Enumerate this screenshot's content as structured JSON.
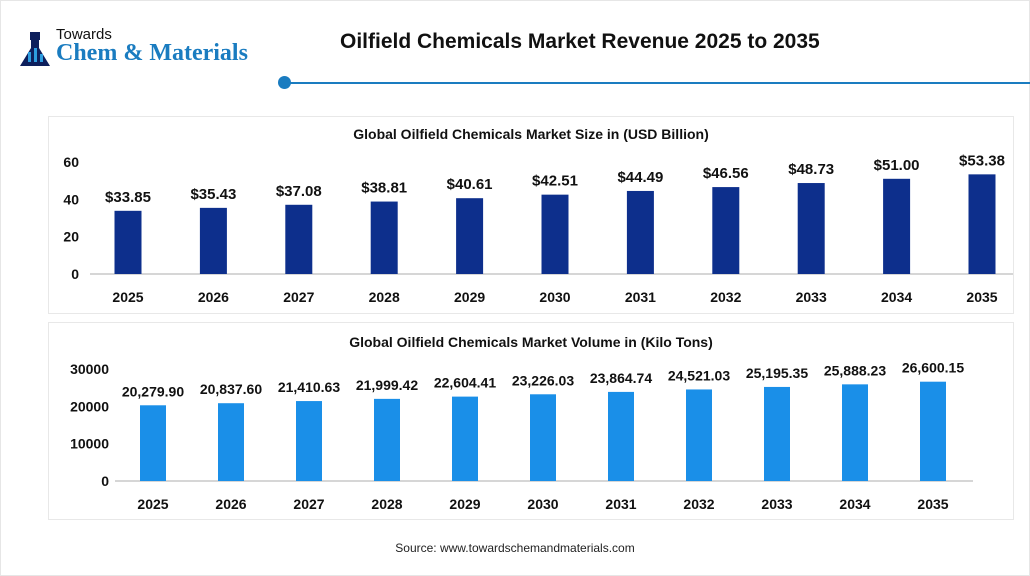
{
  "header": {
    "logo_line1": "Towards",
    "logo_line2": "Chem & Materials",
    "title": "Oilfield Chemicals Market Revenue 2025 to 2035"
  },
  "source": "Source: www.towardschemandmaterials.com",
  "chart_data": [
    {
      "type": "bar",
      "title": "Global Oilfield Chemicals Market Size in (USD Billion)",
      "categories": [
        "2025",
        "2026",
        "2027",
        "2028",
        "2029",
        "2030",
        "2031",
        "2032",
        "2033",
        "2034",
        "2035"
      ],
      "values": [
        33.85,
        35.43,
        37.08,
        38.81,
        40.61,
        42.51,
        44.49,
        46.56,
        48.73,
        51.0,
        53.38
      ],
      "data_labels": [
        "$33.85",
        "$35.43",
        "$37.08",
        "$38.81",
        "$40.61",
        "$42.51",
        "$44.49",
        "$46.56",
        "$48.73",
        "$51.00",
        "$53.38"
      ],
      "ylim": [
        0,
        60
      ],
      "yticks": [
        "0",
        "20",
        "40",
        "60"
      ],
      "color": "#0d2f8c",
      "grid": false
    },
    {
      "type": "bar",
      "title": "Global Oilfield Chemicals Market  Volume in (Kilo Tons)",
      "categories": [
        "2025",
        "2026",
        "2027",
        "2028",
        "2029",
        "2030",
        "2031",
        "2032",
        "2033",
        "2034",
        "2035"
      ],
      "values": [
        20279.9,
        20837.6,
        21410.63,
        21999.42,
        22604.41,
        23226.03,
        23864.74,
        24521.03,
        25195.35,
        25888.23,
        26600.15
      ],
      "data_labels": [
        "20,279.90",
        "20,837.60",
        "21,410.63",
        "21,999.42",
        "22,604.41",
        "23,226.03",
        "23,864.74",
        "24,521.03",
        "25,195.35",
        "25,888.23",
        "26,600.15"
      ],
      "ylim": [
        0,
        30000
      ],
      "yticks": [
        "0",
        "10000",
        "20000",
        "30000"
      ],
      "color": "#1a8fe8",
      "grid": false
    }
  ]
}
